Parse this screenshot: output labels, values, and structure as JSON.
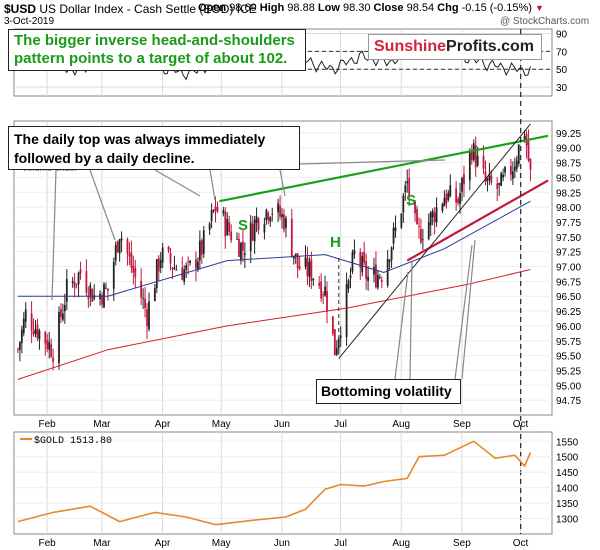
{
  "header": {
    "symbol": "$USD",
    "name": "US Dollar Index - Cash Settle (EOD) ICE",
    "date": "3-Oct-2019",
    "open_label": "Open",
    "open": "98.69",
    "high_label": "High",
    "high": "98.88",
    "low_label": "Low",
    "low": "98.30",
    "close_label": "Close",
    "close": "98.54",
    "chg_label": "Chg",
    "chg": "-0.15 (-0.15%)",
    "watermark": "@ StockCharts.com"
  },
  "annotations": {
    "top_box": "The bigger inverse head-and-shoulders pattern points to a target of about 102.",
    "top_logo_a": "Sunshine",
    "top_logo_b": "Profits.com",
    "daily_box": "The daily top was always immediately followed by a daily decline.",
    "bottom_box": "Bottoming volatility",
    "s_left": "S",
    "h_mid": "H",
    "s_right": "S",
    "volume_label": "Volume undef"
  },
  "colors": {
    "up": "#222222",
    "down": "#c4163c",
    "ma50": "#2a3a9e",
    "ma200": "#d21f2a",
    "neckline": "#17a21a",
    "support": "#c4163c",
    "gold": "#e58a2c",
    "grid": "#d9d9d9"
  },
  "chart_data": [
    {
      "type": "line",
      "panel": "indicator",
      "ylim": [
        20,
        95
      ],
      "yticks": [
        30,
        50,
        70,
        90
      ],
      "reference_lines": [
        50,
        70
      ],
      "description_values_sample": [
        55,
        60,
        48,
        62,
        70,
        52,
        45,
        58,
        66,
        72,
        60,
        50,
        64,
        58,
        70,
        74,
        60,
        52,
        48
      ]
    },
    {
      "type": "candlestick",
      "panel": "price",
      "title": "$USD US Dollar Index - Cash Settle (EOD) ICE",
      "ylim": [
        94.5,
        99.45
      ],
      "yticks": [
        94.75,
        95.0,
        95.25,
        95.5,
        95.75,
        96.0,
        96.25,
        96.5,
        96.75,
        97.0,
        97.25,
        97.5,
        97.75,
        98.0,
        98.25,
        98.5,
        98.75,
        99.0,
        99.25
      ],
      "x_months": [
        "Feb",
        "Mar",
        "Apr",
        "May",
        "Jun",
        "Jul",
        "Aug",
        "Sep",
        "Oct"
      ],
      "close_series": [
        [
          "2019-01-14",
          95.6
        ],
        [
          "2019-01-18",
          96.2
        ],
        [
          "2019-01-25",
          95.9
        ],
        [
          "2019-02-01",
          95.6
        ],
        [
          "2019-02-08",
          96.6
        ],
        [
          "2019-02-15",
          96.9
        ],
        [
          "2019-02-22",
          96.5
        ],
        [
          "2019-03-01",
          96.6
        ],
        [
          "2019-03-07",
          97.6
        ],
        [
          "2019-03-14",
          96.9
        ],
        [
          "2019-03-21",
          96.2
        ],
        [
          "2019-03-28",
          97.2
        ],
        [
          "2019-04-04",
          97.0
        ],
        [
          "2019-04-11",
          96.9
        ],
        [
          "2019-04-18",
          97.3
        ],
        [
          "2019-04-25",
          98.0
        ],
        [
          "2019-05-02",
          97.6
        ],
        [
          "2019-05-09",
          97.3
        ],
        [
          "2019-05-16",
          97.8
        ],
        [
          "2019-05-23",
          98.0
        ],
        [
          "2019-05-30",
          97.8
        ],
        [
          "2019-06-06",
          97.0
        ],
        [
          "2019-06-13",
          96.9
        ],
        [
          "2019-06-20",
          96.6
        ],
        [
          "2019-06-25",
          95.6
        ],
        [
          "2019-07-01",
          96.5
        ],
        [
          "2019-07-05",
          97.2
        ],
        [
          "2019-07-12",
          96.8
        ],
        [
          "2019-07-19",
          96.9
        ],
        [
          "2019-07-26",
          97.6
        ],
        [
          "2019-08-01",
          98.4
        ],
        [
          "2019-08-06",
          97.5
        ],
        [
          "2019-08-13",
          97.8
        ],
        [
          "2019-08-20",
          98.2
        ],
        [
          "2019-08-27",
          98.1
        ],
        [
          "2019-09-03",
          99.0
        ],
        [
          "2019-09-10",
          98.4
        ],
        [
          "2019-09-17",
          98.3
        ],
        [
          "2019-09-24",
          98.7
        ],
        [
          "2019-09-30",
          99.3
        ],
        [
          "2019-10-03",
          98.54
        ]
      ],
      "series": [
        {
          "name": "50-day MA",
          "points": [
            [
              "2019-01-14",
              96.5
            ],
            [
              "2019-03-01",
              96.5
            ],
            [
              "2019-05-01",
              97.1
            ],
            [
              "2019-06-20",
              97.2
            ],
            [
              "2019-07-20",
              96.9
            ],
            [
              "2019-08-20",
              97.3
            ],
            [
              "2019-10-03",
              98.1
            ]
          ]
        },
        {
          "name": "200-day MA",
          "points": [
            [
              "2019-01-14",
              95.1
            ],
            [
              "2019-03-01",
              95.6
            ],
            [
              "2019-05-01",
              96.0
            ],
            [
              "2019-07-01",
              96.3
            ],
            [
              "2019-09-01",
              96.7
            ],
            [
              "2019-10-03",
              96.95
            ]
          ]
        }
      ],
      "trendlines": [
        {
          "name": "neckline",
          "from": [
            "2019-04-27",
            98.1
          ],
          "to": [
            "2019-10-12",
            99.2
          ]
        },
        {
          "name": "support",
          "from": [
            "2019-08-01",
            97.1
          ],
          "to": [
            "2019-10-12",
            98.45
          ]
        },
        {
          "name": "rising",
          "from": [
            "2019-06-27",
            95.45
          ],
          "to": [
            "2019-10-03",
            99.4
          ]
        }
      ]
    },
    {
      "type": "line",
      "panel": "gold",
      "title": "$GOLD 1513.80",
      "ylim": [
        1250,
        1580
      ],
      "yticks": [
        1300,
        1350,
        1400,
        1450,
        1500,
        1550
      ],
      "points": [
        [
          "2019-01-14",
          1290
        ],
        [
          "2019-02-01",
          1320
        ],
        [
          "2019-02-20",
          1340
        ],
        [
          "2019-03-07",
          1290
        ],
        [
          "2019-03-25",
          1320
        ],
        [
          "2019-04-10",
          1305
        ],
        [
          "2019-04-25",
          1280
        ],
        [
          "2019-05-15",
          1295
        ],
        [
          "2019-05-31",
          1305
        ],
        [
          "2019-06-10",
          1330
        ],
        [
          "2019-06-20",
          1395
        ],
        [
          "2019-06-28",
          1410
        ],
        [
          "2019-07-10",
          1405
        ],
        [
          "2019-07-20",
          1420
        ],
        [
          "2019-08-01",
          1430
        ],
        [
          "2019-08-07",
          1500
        ],
        [
          "2019-08-20",
          1505
        ],
        [
          "2019-09-04",
          1550
        ],
        [
          "2019-09-15",
          1495
        ],
        [
          "2019-09-25",
          1505
        ],
        [
          "2019-09-30",
          1470
        ],
        [
          "2019-10-03",
          1513.8
        ]
      ]
    }
  ]
}
